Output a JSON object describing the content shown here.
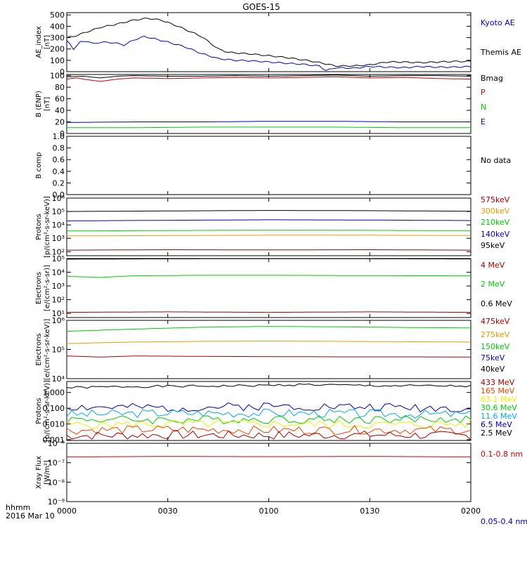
{
  "title": "GOES-15",
  "time_axis": {
    "label_line1": "hhmm",
    "label_line2": "2016 Mar 10",
    "ticks": [
      "0000",
      "0030",
      "0100",
      "0130",
      "0200"
    ],
    "range_minutes": [
      0,
      120
    ]
  },
  "chart_data": [
    {
      "type": "line",
      "ylabel": "AE_index",
      "yunit": "[nT]",
      "scale": "linear",
      "ylim": [
        0,
        520
      ],
      "yticks": [
        "0",
        "100",
        "200",
        "300",
        "400",
        "500"
      ],
      "legend": [
        {
          "label": "Kyoto AE",
          "color": "#0000cc"
        },
        {
          "label": "Themis AE",
          "color": "#000000"
        }
      ],
      "series": [
        {
          "name": "Themis AE",
          "color": "#000000",
          "x": [
            0,
            2,
            5,
            10,
            15,
            20,
            24,
            28,
            33,
            40,
            45,
            48,
            55,
            60,
            65,
            70,
            75,
            80,
            85,
            90,
            95,
            100,
            105,
            110,
            115,
            120
          ],
          "values": [
            300,
            310,
            340,
            390,
            420,
            455,
            470,
            455,
            400,
            310,
            200,
            170,
            155,
            140,
            125,
            105,
            80,
            50,
            50,
            60,
            85,
            85,
            80,
            85,
            90,
            90
          ]
        },
        {
          "name": "Kyoto AE",
          "color": "#0000cc",
          "x": [
            0,
            1,
            2,
            4,
            6,
            8,
            10,
            14,
            17,
            20,
            23,
            26,
            30,
            35,
            40,
            45,
            50,
            55,
            60,
            65,
            70,
            75,
            77,
            80,
            85,
            90,
            95,
            100,
            105,
            110,
            115,
            120
          ],
          "values": [
            270,
            240,
            200,
            260,
            270,
            245,
            260,
            255,
            235,
            280,
            310,
            290,
            260,
            220,
            160,
            115,
            100,
            95,
            85,
            75,
            65,
            50,
            10,
            35,
            30,
            45,
            40,
            35,
            45,
            40,
            40,
            45
          ]
        }
      ]
    },
    {
      "type": "line",
      "ylabel": "B (ENP)",
      "yunit": "[nT]",
      "scale": "linear",
      "ylim": [
        0,
        102
      ],
      "yticks": [
        "0",
        "20",
        "40",
        "60",
        "80",
        "100"
      ],
      "legend": [
        {
          "label": "Bmag",
          "color": "#000000"
        },
        {
          "label": "P",
          "color": "#cc0000"
        },
        {
          "label": "N",
          "color": "#00cc00"
        },
        {
          "label": "E",
          "color": "#0000cc"
        }
      ],
      "series": [
        {
          "name": "Bmag",
          "color": "#000000",
          "x": [
            0,
            5,
            10,
            15,
            20,
            30,
            40,
            50,
            60,
            70,
            80,
            90,
            100,
            110,
            120
          ],
          "values": [
            98,
            99,
            96,
            99,
            100,
            99,
            99,
            100,
            99,
            100,
            101,
            99,
            100,
            100,
            99
          ]
        },
        {
          "name": "P",
          "color": "#cc0000",
          "x": [
            0,
            3,
            6,
            10,
            15,
            20,
            30,
            40,
            50,
            60,
            70,
            80,
            90,
            100,
            110,
            120
          ],
          "values": [
            94,
            96,
            93,
            90,
            94,
            96,
            95,
            96,
            97,
            96,
            97,
            98,
            96,
            97,
            95,
            94
          ]
        },
        {
          "name": "E",
          "color": "#0000cc",
          "x": [
            0,
            20,
            40,
            60,
            80,
            100,
            120
          ],
          "values": [
            19,
            20,
            20,
            21,
            21,
            20,
            20
          ]
        },
        {
          "name": "N",
          "color": "#00cc00",
          "x": [
            0,
            20,
            40,
            60,
            80,
            100,
            120
          ],
          "values": [
            10,
            10,
            11,
            11,
            11,
            10,
            10
          ]
        }
      ]
    },
    {
      "type": "line",
      "ylabel": "B comp",
      "yunit": "",
      "scale": "linear",
      "ylim": [
        0,
        1.0
      ],
      "yticks": [
        "0.0",
        "0.2",
        "0.4",
        "0.6",
        "0.8",
        "1.0"
      ],
      "legend": [
        {
          "label": "No data",
          "color": "#000000"
        }
      ],
      "series": []
    },
    {
      "type": "line",
      "ylabel": "Protons",
      "yunit": "[p/(cm²-s-sr-keV)]",
      "scale": "log",
      "ylim_exp": [
        1.7,
        6
      ],
      "yticks": [
        "10²",
        "10³",
        "10⁴",
        "10⁵",
        "10⁶"
      ],
      "legend": [
        {
          "label": "575keV",
          "color": "#aa0000"
        },
        {
          "label": "300keV",
          "color": "#ee9900"
        },
        {
          "label": "210keV",
          "color": "#00cc00"
        },
        {
          "label": "140keV",
          "color": "#0000cc"
        },
        {
          "label": "95keV",
          "color": "#000000"
        }
      ],
      "series": [
        {
          "name": "95keV",
          "color": "#000000",
          "x": [
            0,
            30,
            60,
            90,
            120
          ],
          "values": [
            100000,
            110000,
            120000,
            115000,
            105000
          ]
        },
        {
          "name": "140keV",
          "color": "#0000cc",
          "x": [
            0,
            30,
            60,
            90,
            120
          ],
          "values": [
            20000,
            22000,
            24000,
            23000,
            21000
          ]
        },
        {
          "name": "210keV",
          "color": "#00cc00",
          "x": [
            0,
            30,
            60,
            90,
            120
          ],
          "values": [
            3500,
            3800,
            4000,
            3900,
            3700
          ]
        },
        {
          "name": "300keV",
          "color": "#ee9900",
          "x": [
            0,
            30,
            60,
            90,
            120
          ],
          "values": [
            1500,
            1600,
            1700,
            1700,
            1600
          ]
        },
        {
          "name": "575keV",
          "color": "#aa0000",
          "x": [
            0,
            30,
            60,
            90,
            120
          ],
          "values": [
            130,
            140,
            135,
            140,
            130
          ]
        }
      ]
    },
    {
      "type": "line",
      "ylabel": "Electrons",
      "yunit": "[e/(cm²-s-sr)]",
      "scale": "log",
      "ylim_exp": [
        0.7,
        5
      ],
      "yticks": [
        "10¹",
        "10²",
        "10³",
        "10⁴",
        "10⁵"
      ],
      "legend": [
        {
          "label": "4 MeV",
          "color": "#aa0000"
        },
        {
          "label": "2 MeV",
          "color": "#00cc00"
        },
        {
          "label": "0.6 MeV",
          "color": "#000000"
        }
      ],
      "series": [
        {
          "name": "0.6 MeV",
          "color": "#000000",
          "x": [
            0,
            30,
            60,
            90,
            120
          ],
          "values": [
            90000,
            95000,
            98000,
            96000,
            93000
          ]
        },
        {
          "name": "2 MeV",
          "color": "#00cc00",
          "x": [
            0,
            10,
            20,
            40,
            60,
            80,
            100,
            120
          ],
          "values": [
            5000,
            4200,
            5500,
            6000,
            6000,
            5800,
            5600,
            5500
          ]
        },
        {
          "name": "4 MeV",
          "color": "#aa0000",
          "x": [
            0,
            30,
            60,
            90,
            120
          ],
          "values": [
            12,
            13,
            12,
            13,
            12
          ]
        }
      ]
    },
    {
      "type": "line",
      "ylabel": "Electrons",
      "yunit": "[e/(cm²-s-sr-keV)]",
      "scale": "log",
      "ylim_exp": [
        4,
        6
      ],
      "yticks": [
        "10⁴",
        "10⁵",
        "10⁶"
      ],
      "legend": [
        {
          "label": "475keV",
          "color": "#aa0000"
        },
        {
          "label": "275keV",
          "color": "#ee9900"
        },
        {
          "label": "150keV",
          "color": "#00cc00"
        },
        {
          "label": "75keV",
          "color": "#0000cc"
        },
        {
          "label": "40keV",
          "color": "#000000"
        }
      ],
      "series": [
        {
          "name": "150keV",
          "color": "#00cc00",
          "x": [
            0,
            20,
            40,
            60,
            80,
            100,
            120
          ],
          "values": [
            420000,
            500000,
            580000,
            620000,
            600000,
            570000,
            550000
          ]
        },
        {
          "name": "275keV",
          "color": "#ee9900",
          "x": [
            0,
            20,
            40,
            60,
            80,
            100,
            120
          ],
          "values": [
            160000,
            180000,
            190000,
            195000,
            190000,
            185000,
            180000
          ]
        },
        {
          "name": "475keV",
          "color": "#aa0000",
          "x": [
            0,
            10,
            20,
            40,
            60,
            80,
            100,
            120
          ],
          "values": [
            60000,
            55000,
            60000,
            58000,
            57000,
            56000,
            56000,
            55000
          ]
        }
      ]
    },
    {
      "type": "line",
      "ylabel": "Protons",
      "yunit": "[p/(cm²-s-sr-keV)]",
      "scale": "log",
      "ylim_exp": [
        -3.05,
        0.7
      ],
      "yticks": [
        "0.001",
        "0.010",
        "0.100",
        "1.000"
      ],
      "legend": [
        {
          "label": "433 MeV",
          "color": "#aa0000"
        },
        {
          "label": "165 MeV",
          "color": "#ee4400"
        },
        {
          "label": "63.1 MeV",
          "color": "#eeee00"
        },
        {
          "label": "30.6 MeV",
          "color": "#00cc00"
        },
        {
          "label": "11.6 MeV",
          "color": "#00aaee"
        },
        {
          "label": "6.5 MeV",
          "color": "#0000aa"
        },
        {
          "label": "2.5 MeV",
          "color": "#000000"
        }
      ],
      "series": [
        {
          "name": "2.5 MeV",
          "color": "#000000",
          "noise_seed": 1,
          "x": [
            0,
            20,
            40,
            60,
            70,
            90,
            110,
            120
          ],
          "values": [
            2.0,
            2.4,
            2.5,
            2.8,
            3.2,
            2.7,
            2.6,
            2.5
          ]
        },
        {
          "name": "6.5 MeV",
          "color": "#0000aa",
          "noise_seed": 2,
          "x": [
            0,
            30,
            60,
            90,
            120
          ],
          "values": [
            0.12,
            0.1,
            0.14,
            0.12,
            0.1
          ]
        },
        {
          "name": "11.6 MeV",
          "color": "#00aaee",
          "noise_seed": 3,
          "x": [
            0,
            30,
            60,
            90,
            120
          ],
          "values": [
            0.04,
            0.05,
            0.05,
            0.045,
            0.04
          ]
        },
        {
          "name": "30.6 MeV",
          "color": "#00cc00",
          "noise_seed": 4,
          "x": [
            0,
            30,
            60,
            90,
            120
          ],
          "values": [
            0.02,
            0.018,
            0.02,
            0.019,
            0.02
          ]
        },
        {
          "name": "63.1 MeV",
          "color": "#eeee00",
          "noise_seed": 5,
          "x": [
            0,
            30,
            60,
            90,
            120
          ],
          "values": [
            0.009,
            0.01,
            0.01,
            0.009,
            0.01
          ]
        },
        {
          "name": "165 MeV",
          "color": "#ee4400",
          "noise_seed": 6,
          "x": [
            0,
            30,
            60,
            90,
            120
          ],
          "values": [
            0.004,
            0.0045,
            0.004,
            0.0042,
            0.004
          ]
        },
        {
          "name": "433 MeV",
          "color": "#aa0000",
          "noise_seed": 7,
          "x": [
            0,
            30,
            60,
            90,
            120
          ],
          "values": [
            0.0018,
            0.002,
            0.0019,
            0.002,
            0.0018
          ]
        }
      ]
    },
    {
      "type": "line",
      "ylabel": "Xray Flux",
      "yunit": "[W/m²]",
      "scale": "log",
      "ylim_exp": [
        -9,
        -6
      ],
      "yticks": [
        "10⁻⁹",
        "10⁻⁸",
        "10⁻⁷",
        "10⁻⁶"
      ],
      "legend": [
        {
          "label": "0.1-0.8 nm",
          "color": "#cc0000"
        },
        {
          "label": "0.05-0.4 nm",
          "color": "#0000cc"
        }
      ],
      "series": [
        {
          "name": "0.1-0.8 nm",
          "color": "#cc0000",
          "x": [
            0,
            30,
            60,
            90,
            120
          ],
          "values": 2e-07,
          "values_list": [
            2e-07,
            2.1e-07,
            2.05e-07,
            2.1e-07,
            2e-07
          ]
        }
      ]
    }
  ]
}
